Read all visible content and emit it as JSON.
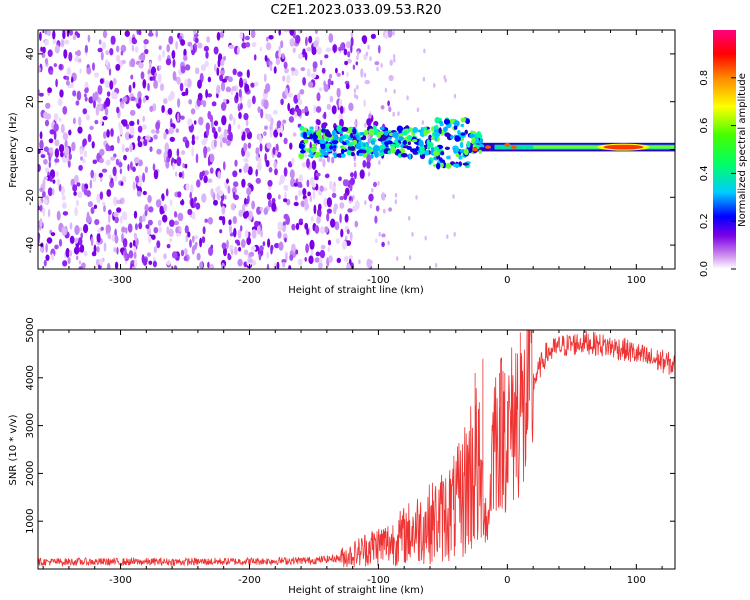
{
  "figure": {
    "title": "C2E1.2023.033.09.53.R20"
  },
  "chart_data": [
    {
      "type": "heatmap",
      "name": "spectrogram",
      "xlabel": "Height of straight line (km)",
      "ylabel": "Frequency (Hz)",
      "xlim": [
        -364,
        130
      ],
      "ylim": [
        -50,
        50
      ],
      "xticks": [
        -300,
        -200,
        -100,
        0,
        100
      ],
      "yticks": [
        -40,
        -20,
        0,
        20,
        40
      ],
      "colorbar": {
        "label": "Normalized spectral amplitude",
        "range": [
          0,
          1
        ],
        "ticks": [
          0.0,
          0.2,
          0.4,
          0.6,
          0.8
        ],
        "colors": [
          "#ffffff",
          "#cc88ee",
          "#7a00e6",
          "#0000ff",
          "#00ccff",
          "#00ff66",
          "#44ff00",
          "#ffff00",
          "#ff8800",
          "#ff0000",
          "#ff0080"
        ]
      },
      "features": {
        "noise_region_x": [
          -364,
          -120
        ],
        "signal_band_x": [
          -160,
          130
        ],
        "signal_center_freq_hz": 1,
        "peak_amplitude_x": 90
      }
    },
    {
      "type": "line",
      "name": "snr",
      "xlabel": "Height of straight line (km)",
      "ylabel": "SNR (10 * v/v)",
      "xlim": [
        -364,
        130
      ],
      "ylim": [
        0,
        5000
      ],
      "xticks": [
        -300,
        -200,
        -100,
        0,
        100
      ],
      "yticks": [
        1000,
        2000,
        3000,
        4000,
        5000
      ],
      "color": "#ee3333",
      "series": [
        {
          "x": [
            -364,
            -300,
            -250,
            -200,
            -150,
            -130,
            -120,
            -110,
            -100,
            -90,
            -80,
            -70,
            -60,
            -50,
            -40,
            -35,
            -30,
            -25,
            -20,
            -15,
            -12,
            -10,
            -8,
            -5,
            0,
            5,
            10,
            12,
            15,
            20,
            25,
            30,
            40,
            50,
            60,
            70,
            80,
            90,
            100,
            110,
            120,
            130
          ],
          "y": [
            150,
            150,
            150,
            160,
            180,
            230,
            300,
            420,
            500,
            550,
            700,
            850,
            950,
            1100,
            1300,
            1500,
            1900,
            2200,
            1700,
            900,
            2300,
            3000,
            2700,
            2900,
            2800,
            3100,
            3500,
            3000,
            3600,
            3900,
            4200,
            4500,
            4650,
            4700,
            4750,
            4700,
            4650,
            4600,
            4500,
            4400,
            4350,
            4250
          ]
        }
      ],
      "spikes": [
        {
          "x": 10,
          "y": 4950
        },
        {
          "x": -19,
          "y": 4400
        },
        {
          "x": -25,
          "y": 4100
        },
        {
          "x": -6,
          "y": 4100
        },
        {
          "x": -2,
          "y": 4100
        }
      ]
    }
  ]
}
